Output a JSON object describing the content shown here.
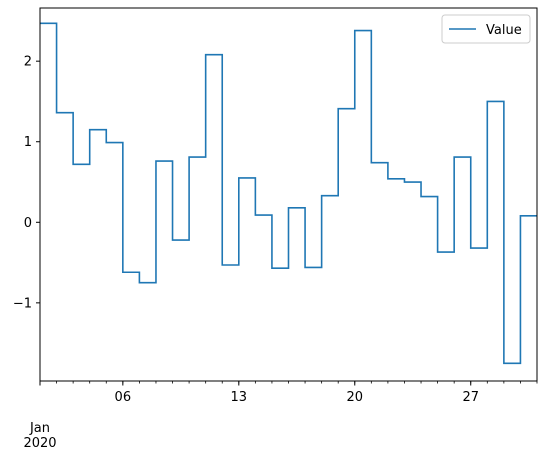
{
  "chart_data": {
    "type": "line",
    "drawstyle": "steps-post",
    "title": "",
    "xlabel": "",
    "ylabel": "",
    "legend": {
      "placement": "top-right",
      "entries": [
        "Value"
      ]
    },
    "grid": false,
    "x": [
      "2020-01-01",
      "2020-01-02",
      "2020-01-03",
      "2020-01-04",
      "2020-01-05",
      "2020-01-06",
      "2020-01-07",
      "2020-01-08",
      "2020-01-09",
      "2020-01-10",
      "2020-01-11",
      "2020-01-12",
      "2020-01-13",
      "2020-01-14",
      "2020-01-15",
      "2020-01-16",
      "2020-01-17",
      "2020-01-18",
      "2020-01-19",
      "2020-01-20",
      "2020-01-21",
      "2020-01-22",
      "2020-01-23",
      "2020-01-24",
      "2020-01-25",
      "2020-01-26",
      "2020-01-27",
      "2020-01-28",
      "2020-01-29",
      "2020-01-30",
      "2020-01-31"
    ],
    "series": [
      {
        "name": "Value",
        "color": "#1f77b4",
        "values": [
          2.47,
          1.36,
          0.72,
          1.15,
          0.99,
          -0.62,
          -0.75,
          0.76,
          -0.22,
          0.81,
          2.08,
          -0.53,
          0.55,
          0.09,
          -0.57,
          0.18,
          -0.56,
          0.33,
          1.41,
          2.38,
          0.74,
          0.54,
          0.5,
          0.32,
          -0.37,
          0.81,
          -0.32,
          1.5,
          -1.75,
          0.08,
          0.08
        ]
      }
    ],
    "xlim": [
      "2020-01-01",
      "2020-01-31"
    ],
    "ylim": [
      -1.97,
      2.66
    ],
    "y_ticks": [
      -1,
      0,
      1,
      2
    ],
    "y_tick_labels": [
      "−1",
      "0",
      "1",
      "2"
    ],
    "x_major_ticks": [
      "2020-01-06",
      "2020-01-13",
      "2020-01-20",
      "2020-01-27"
    ],
    "x_major_tick_labels": [
      "06",
      "13",
      "20",
      "27"
    ],
    "x_secondary_label_line1": "Jan",
    "x_secondary_label_line2": "2020"
  }
}
